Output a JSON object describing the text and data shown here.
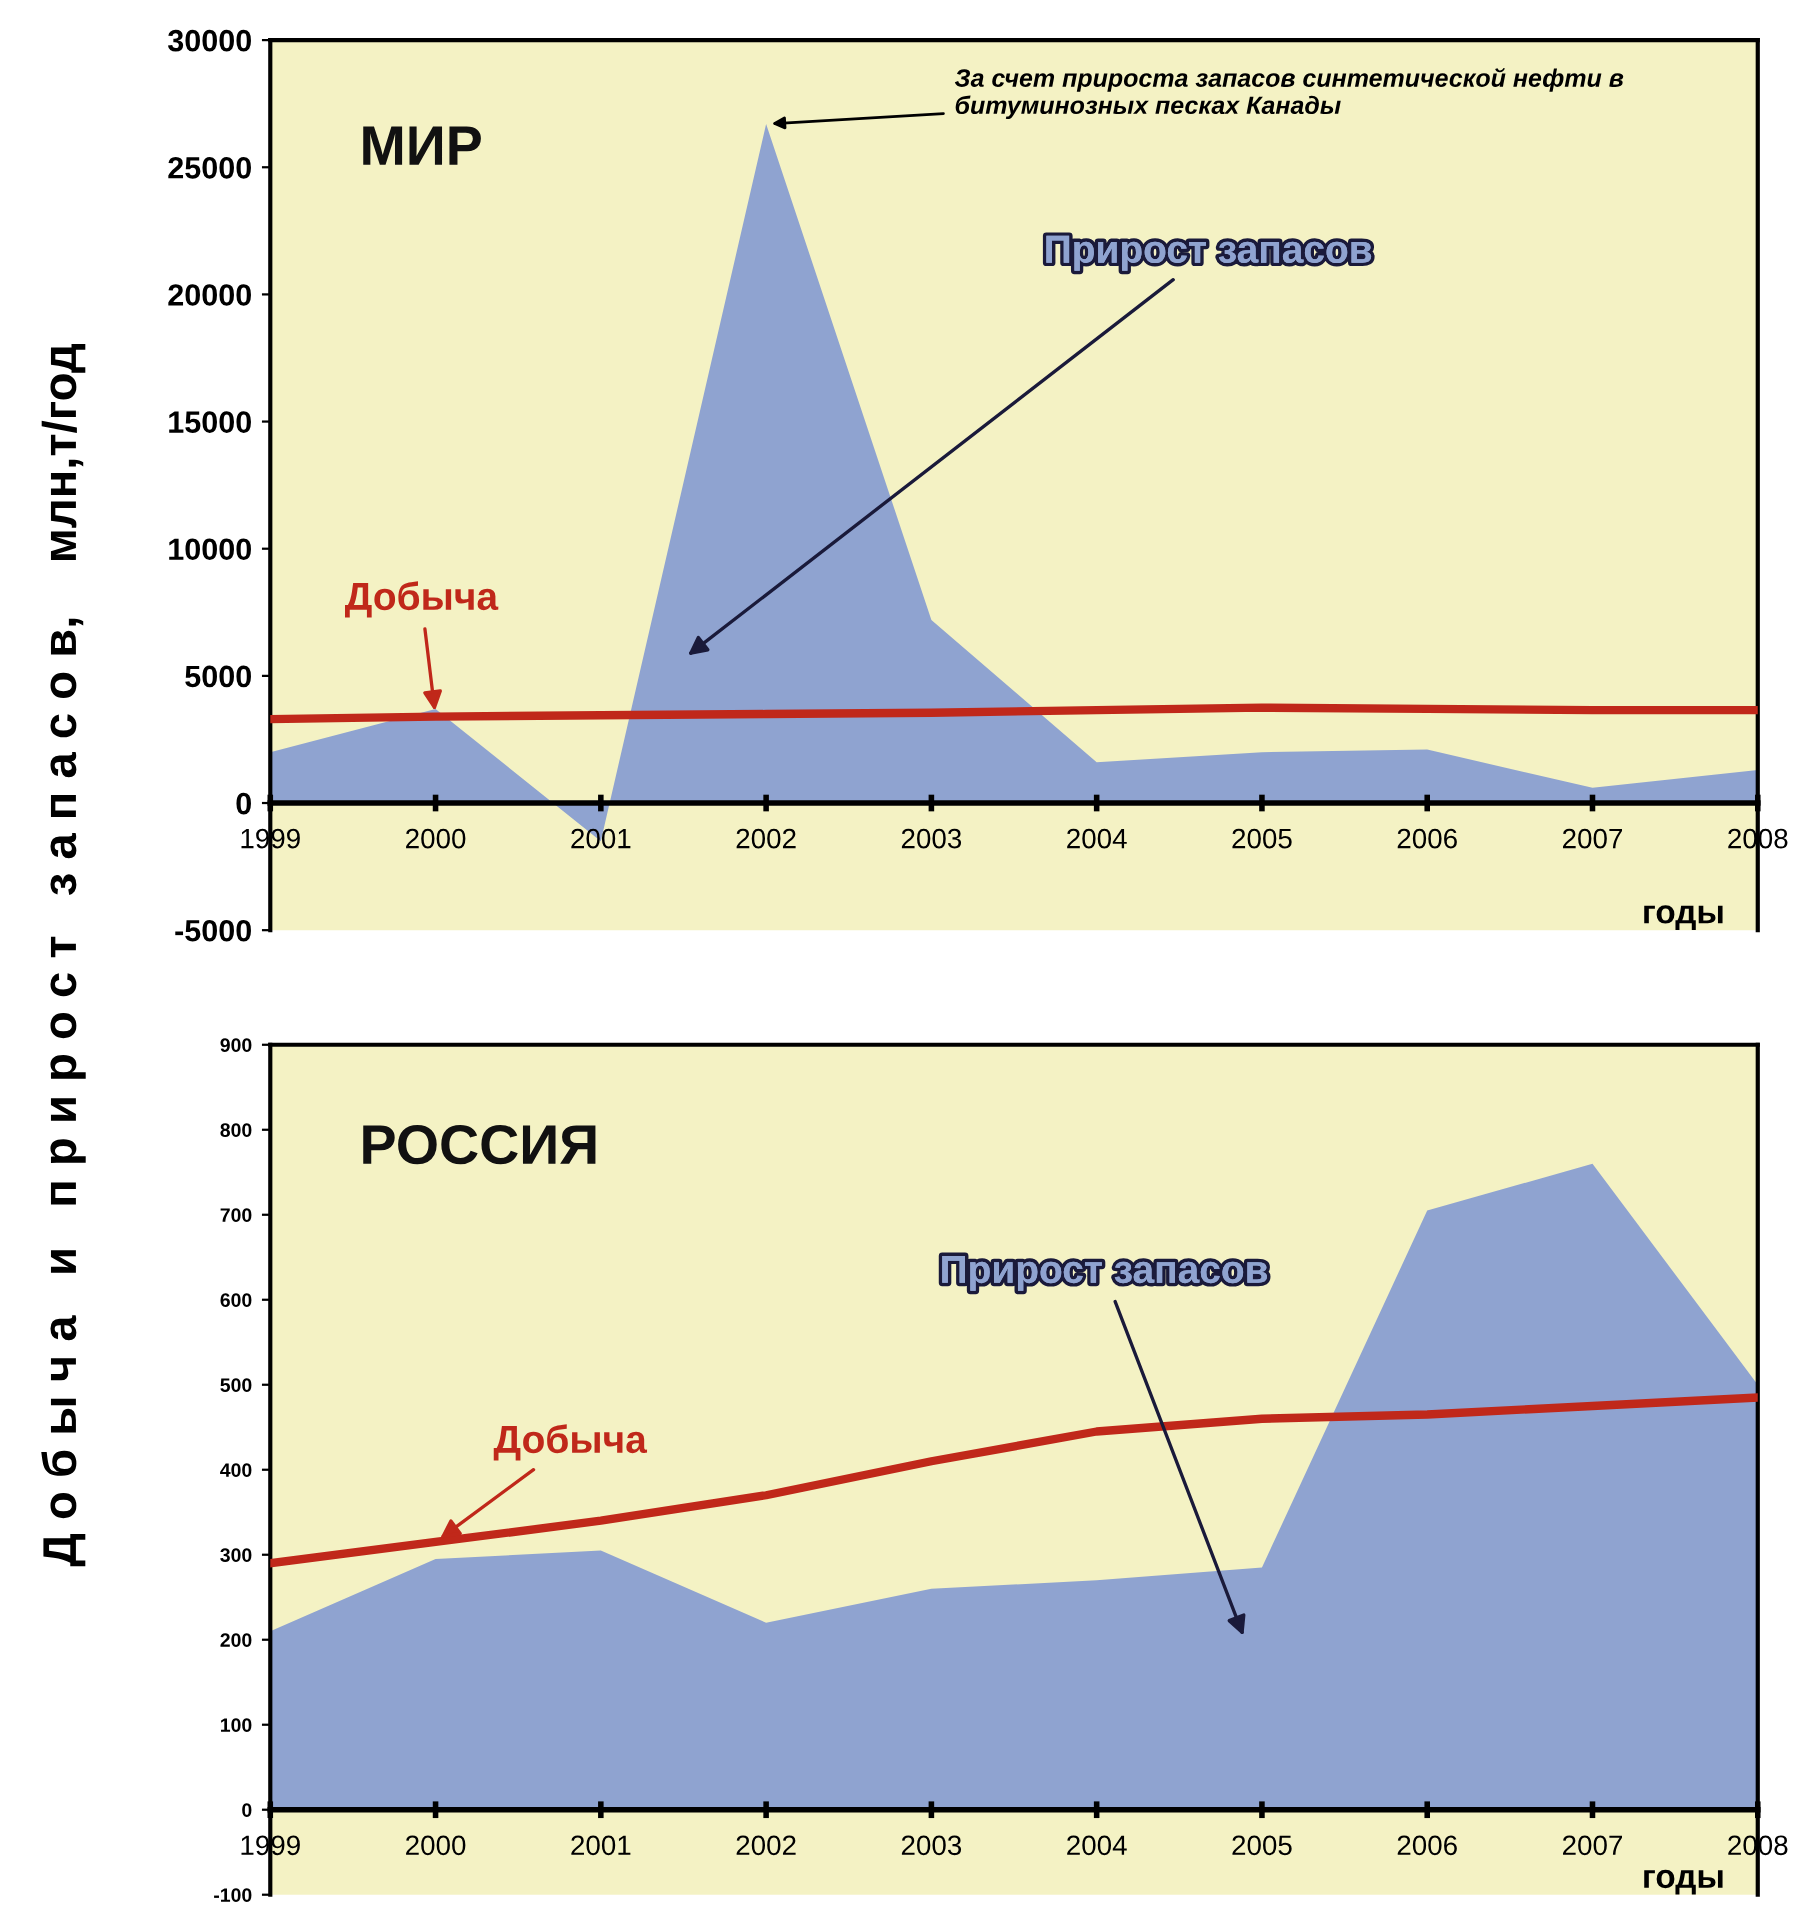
{
  "chart_data": [
    {
      "type": "area",
      "title": "МИР",
      "ylabel": "Д о б ы ч а   и   п р и р о с т   з а п а с о в,    млн,т/год",
      "xlabel": "годы",
      "categories": [
        "1999",
        "2000",
        "2001",
        "2002",
        "2003",
        "2004",
        "2005",
        "2006",
        "2007",
        "2008"
      ],
      "series": [
        {
          "name": "Прирост запасов",
          "color": "#8fa3d0",
          "values": [
            2000,
            3700,
            -1500,
            26700,
            7200,
            1600,
            2000,
            2100,
            600,
            1300
          ]
        },
        {
          "name": "Добыча",
          "type": "line",
          "color": "#c0281a",
          "values": [
            3300,
            3400,
            3450,
            3500,
            3550,
            3650,
            3750,
            3700,
            3650,
            3650
          ]
        }
      ],
      "ylim": [
        -5000,
        30000
      ],
      "yticks": [
        -5000,
        0,
        5000,
        10000,
        15000,
        20000,
        25000,
        30000
      ],
      "annotations": [
        {
          "text": "За счет прироста запасов синтетической нефти в битуминозных песках Канады",
          "x": "2002",
          "y": 26700
        }
      ]
    },
    {
      "type": "area",
      "title": "РОССИЯ",
      "xlabel": "годы",
      "categories": [
        "1999",
        "2000",
        "2001",
        "2002",
        "2003",
        "2004",
        "2005",
        "2006",
        "2007",
        "2008"
      ],
      "series": [
        {
          "name": "Прирост запасов",
          "color": "#8fa3d0",
          "values": [
            210,
            295,
            305,
            220,
            260,
            270,
            285,
            705,
            760,
            500
          ]
        },
        {
          "name": "Добыча",
          "type": "line",
          "color": "#c0281a",
          "values": [
            290,
            315,
            340,
            370,
            410,
            445,
            460,
            465,
            475,
            485
          ]
        }
      ],
      "ylim": [
        -100,
        900
      ],
      "yticks": [
        -100,
        0,
        100,
        200,
        300,
        400,
        500,
        600,
        700,
        800,
        900
      ]
    }
  ]
}
